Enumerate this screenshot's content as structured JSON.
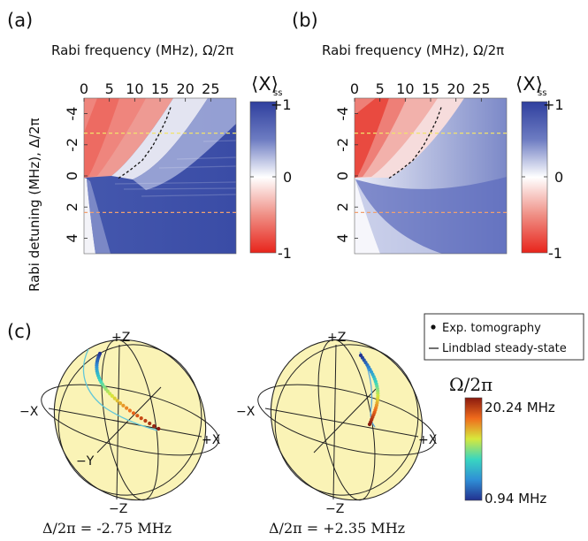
{
  "panels": {
    "a_label": "(a)",
    "b_label": "(b)",
    "c_label": "(c)"
  },
  "heatmaps": {
    "xlabel": "Rabi frequency (MHz), Ω/2π",
    "ylabel": "Rabi detuning (MHz), Δ/2π",
    "xticks": [
      "0",
      "5",
      "10",
      "15",
      "20",
      "25"
    ],
    "yticks": [
      "-4",
      "-2",
      "0",
      "2",
      "4"
    ],
    "colorbar_title": "⟨X⟩",
    "colorbar_sub": "ss",
    "colorbar_ticks": [
      "+1",
      "0",
      "-1"
    ],
    "colors": {
      "positive": "#3346a3",
      "zero": "#ffffff",
      "negative": "#e8241b",
      "yellow_line": "#f2e36b",
      "orange_line": "#f0a070"
    }
  },
  "chart_data": [
    {
      "type": "heatmap",
      "panel": "a",
      "x_range": [
        0,
        30
      ],
      "y_range": [
        -5,
        5
      ],
      "y_inverted": true,
      "value_range": [
        -1,
        1
      ],
      "reference_lines_delta": [
        -2.75,
        2.35
      ],
      "boundary_curve": [
        [
          6.8,
          0.15
        ],
        [
          9.0,
          -0.35
        ],
        [
          11.5,
          -1.0
        ],
        [
          13.5,
          -1.9
        ],
        [
          15.0,
          -2.8
        ],
        [
          16.2,
          -3.6
        ],
        [
          17.2,
          -4.5
        ]
      ]
    },
    {
      "type": "heatmap",
      "panel": "b",
      "x_range": [
        0,
        30
      ],
      "y_range": [
        -5,
        5
      ],
      "y_inverted": true,
      "value_range": [
        -1,
        1
      ],
      "reference_lines_delta": [
        -2.75,
        2.35
      ],
      "boundary_curve": [
        [
          6.8,
          0.15
        ],
        [
          9.0,
          -0.35
        ],
        [
          11.5,
          -1.0
        ],
        [
          13.5,
          -1.9
        ],
        [
          15.0,
          -2.8
        ],
        [
          16.2,
          -3.6
        ],
        [
          17.2,
          -4.5
        ]
      ]
    }
  ],
  "bloch": {
    "legend": {
      "exp": "Exp. tomography",
      "lindblad": "Lindblad steady-state"
    },
    "axes": {
      "pz": "+Z",
      "mz": "−Z",
      "px": "+X",
      "mx": "−X",
      "my": "−Y"
    },
    "left_caption": "Δ/2π = -2.75 MHz",
    "right_caption": "Δ/2π = +2.35 MHz",
    "omega_title": "Ω/2π",
    "omega_max": "20.24 MHz",
    "omega_min": "0.94 MHz",
    "sphere_fill": "#faf3b6"
  }
}
